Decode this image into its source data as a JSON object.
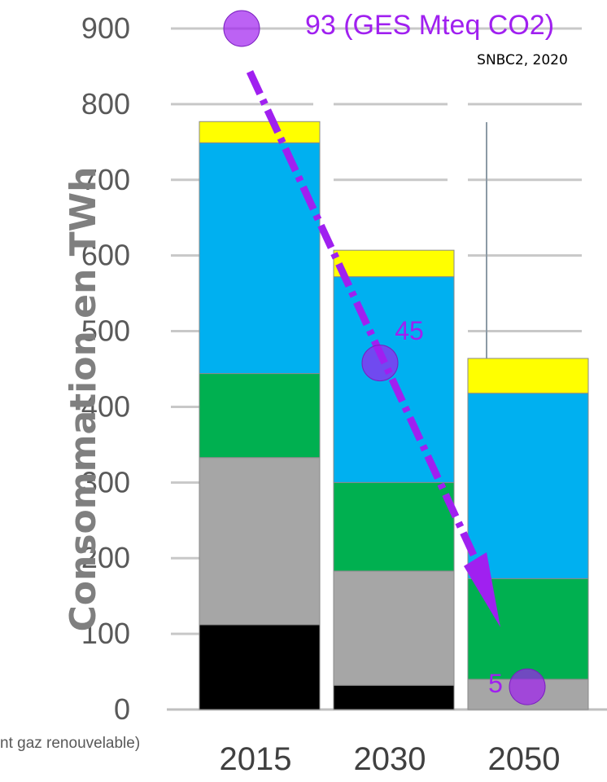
{
  "chart_data": {
    "type": "bar",
    "stacked": true,
    "ylabel": "Consommation en TWh",
    "ylim": [
      0,
      900
    ],
    "yticks": [
      0,
      100,
      200,
      300,
      400,
      500,
      600,
      700,
      800,
      900
    ],
    "grid": true,
    "categories": [
      "2015",
      "2030",
      "2050"
    ],
    "series": [
      {
        "color": "#000000",
        "values": [
          112,
          32,
          0
        ]
      },
      {
        "color": "#a6a6a6",
        "values": [
          221,
          151,
          40
        ]
      },
      {
        "color": "#00b050",
        "values": [
          111,
          117,
          133
        ]
      },
      {
        "color": "#00b0f0",
        "values": [
          305,
          272,
          245
        ]
      },
      {
        "color": "#ffff00",
        "values": [
          28,
          35,
          46
        ]
      }
    ],
    "overlay": {
      "title": "93 (GES Mteq CO2)",
      "source": "SNBC2, 2020",
      "color": "#a020f0",
      "points": [
        {
          "category": "2015",
          "value": 93,
          "label": "93",
          "plot_y": 900
        },
        {
          "category": "2030",
          "value": 45,
          "label": "45",
          "plot_y": 458
        },
        {
          "category": "2050",
          "value": 5,
          "label": "5",
          "plot_y": 30
        }
      ]
    },
    "footnote": "nt gaz renouvelable)"
  }
}
